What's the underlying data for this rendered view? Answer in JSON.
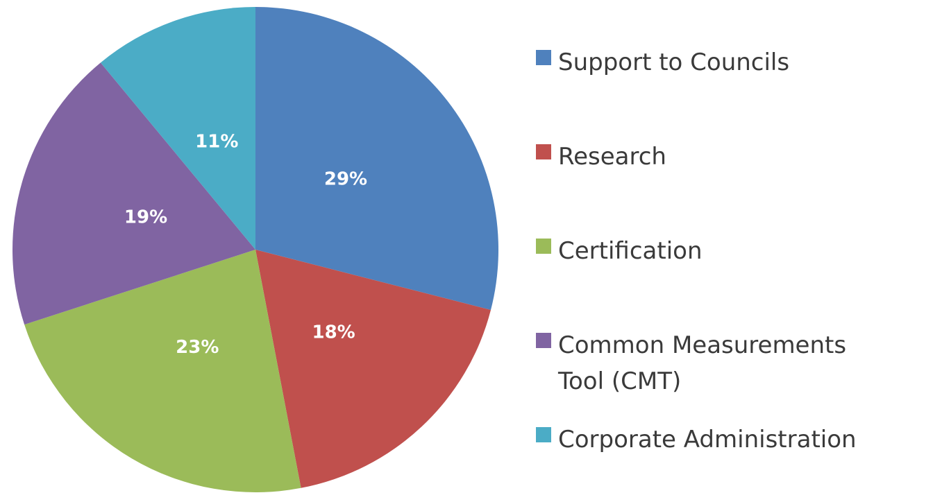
{
  "chart_data": {
    "type": "pie",
    "categories": [
      "Support to Councils",
      "Research",
      "Certification",
      "Common Measurements Tool (CMT)",
      "Corporate Administration"
    ],
    "values": [
      29,
      18,
      23,
      19,
      11
    ],
    "value_labels": [
      "29%",
      "18%",
      "23%",
      "19%",
      "11%"
    ],
    "colors": [
      "#4f81bd",
      "#c0504d",
      "#9bbb59",
      "#8064a2",
      "#4bacc6"
    ],
    "start_angle": "12 o'clock",
    "direction": "clockwise",
    "legend_position": "right"
  }
}
